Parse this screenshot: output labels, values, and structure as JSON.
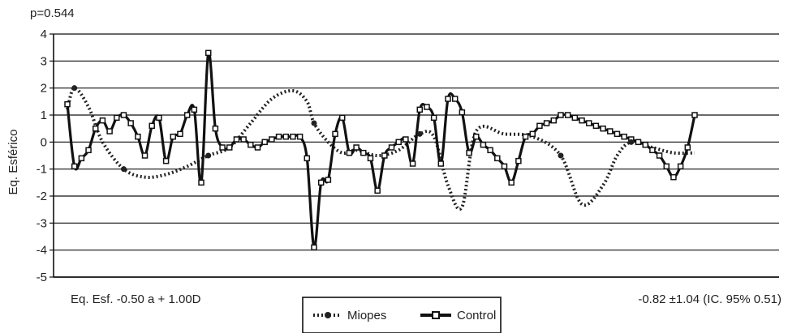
{
  "chart_data": {
    "type": "line",
    "title": "",
    "annotation_top": "p=0.544",
    "annotation_left": "Eq. Esf. -0.50 a + 1.00D",
    "annotation_right": "-0.82 ±1.04 (IC. 95% 0.51)",
    "xlabel": "",
    "ylabel": "Eq. Esférico",
    "ylim": [
      -5,
      4
    ],
    "yticks": [
      "4",
      "3",
      "2",
      "1",
      "0",
      "-1",
      "-2",
      "-3",
      "-4",
      "-5"
    ],
    "grid": true,
    "legend": "bottom-center",
    "series": [
      {
        "name": "Miopes",
        "style": "dotted",
        "color": "#222222",
        "markers_x": [
          1,
          8,
          20,
          35,
          50,
          70,
          80
        ],
        "x": [
          0,
          1,
          3,
          5,
          8,
          11,
          14,
          17,
          20,
          23,
          26,
          29,
          32,
          34,
          35,
          37,
          39,
          41,
          44,
          47,
          50,
          52,
          54,
          56,
          58,
          62,
          66,
          70,
          73,
          76,
          78,
          80,
          83,
          86,
          89
        ],
        "values": [
          1.2,
          2.0,
          1.3,
          0.0,
          -1.0,
          -1.3,
          -1.2,
          -0.9,
          -0.5,
          -0.2,
          0.7,
          1.6,
          1.9,
          1.5,
          0.7,
          0.0,
          -0.4,
          -0.3,
          -0.5,
          -0.3,
          0.3,
          0.2,
          -1.6,
          -2.4,
          0.4,
          0.3,
          0.2,
          -0.5,
          -2.3,
          -1.6,
          -0.5,
          0.0,
          -0.2,
          -0.4,
          -0.4
        ]
      },
      {
        "name": "Control",
        "style": "solid-square",
        "color": "#111111",
        "x": [
          0,
          1,
          2,
          3,
          4,
          5,
          6,
          7,
          8,
          9,
          10,
          11,
          12,
          13,
          14,
          15,
          16,
          17,
          18,
          19,
          20,
          21,
          22,
          23,
          24,
          25,
          26,
          27,
          28,
          29,
          30,
          31,
          32,
          33,
          34,
          35,
          36,
          37,
          38,
          39,
          40,
          41,
          42,
          43,
          44,
          45,
          46,
          47,
          48,
          49,
          50,
          51,
          52,
          53,
          54,
          55,
          56,
          57,
          58,
          59,
          60,
          61,
          62,
          63,
          64,
          65,
          66,
          67,
          68,
          69,
          70,
          71,
          72,
          73,
          74,
          75,
          76,
          77,
          78,
          79,
          80,
          81,
          82,
          83,
          84,
          85,
          86,
          87,
          88,
          89
        ],
        "values": [
          1.4,
          -0.9,
          -0.6,
          -0.3,
          0.5,
          0.8,
          0.4,
          0.9,
          1.0,
          0.7,
          0.2,
          -0.5,
          0.6,
          0.9,
          -0.7,
          0.2,
          0.3,
          1.0,
          1.2,
          -1.5,
          3.3,
          0.5,
          -0.2,
          -0.2,
          0.1,
          0.1,
          -0.1,
          -0.2,
          0.0,
          0.1,
          0.2,
          0.2,
          0.2,
          0.2,
          -0.6,
          -3.9,
          -1.5,
          -1.4,
          0.3,
          0.9,
          -0.4,
          -0.2,
          -0.4,
          -0.6,
          -1.8,
          -0.5,
          -0.2,
          0.0,
          0.1,
          -0.8,
          1.2,
          1.3,
          0.9,
          -0.8,
          1.6,
          1.6,
          1.1,
          -0.4,
          0.2,
          -0.1,
          -0.3,
          -0.6,
          -0.9,
          -1.5,
          -0.7,
          0.2,
          0.3,
          0.6,
          0.7,
          0.8,
          1.0,
          1.0,
          0.9,
          0.8,
          0.7,
          0.6,
          0.5,
          0.4,
          0.3,
          0.2,
          0.1,
          0.0,
          -0.1,
          -0.3,
          -0.5,
          -0.9,
          -1.3,
          -0.9,
          -0.2,
          1.0
        ]
      }
    ]
  }
}
